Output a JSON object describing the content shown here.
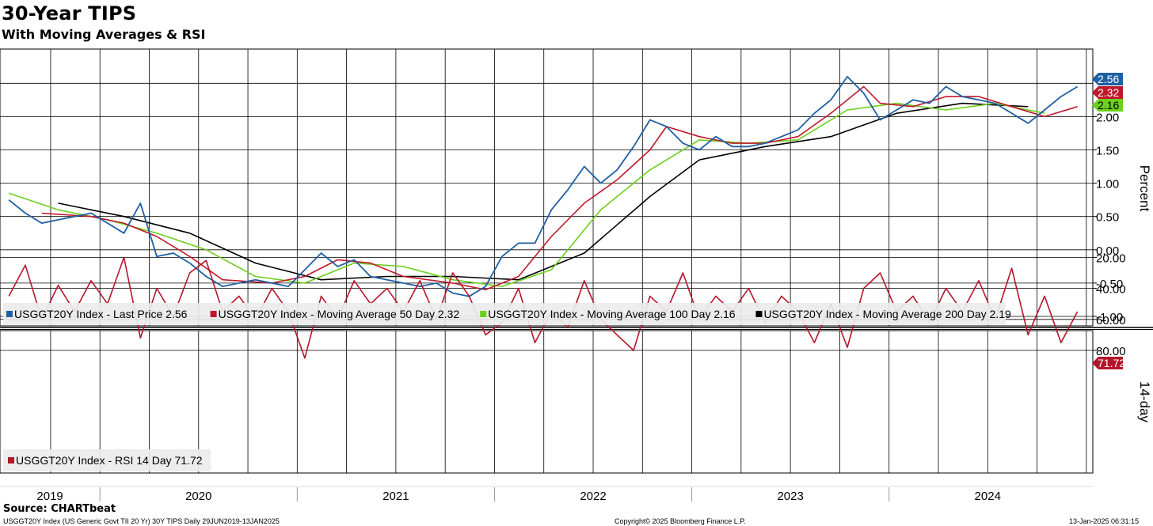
{
  "title": "30-Year TIPS",
  "subtitle": "With Moving Averages & RSI",
  "source": "Source: CHARTbeat",
  "footer": {
    "left": "USGGT20Y Index (US Generic Govt TII 20 Yr) 30Y TIPS  Daily 29JUN2019-13JAN2025",
    "center": "Copyright© 2025 Bloomberg Finance L.P.",
    "right": "13-Jan-2025 06:31:15"
  },
  "colors": {
    "price": "#1f5fa3",
    "ma50": "#c0182b",
    "ma100": "#6ccf1b",
    "ma200": "#000000",
    "rsi": "#b5152a",
    "grid": "#000000"
  },
  "chart_data": [
    {
      "type": "line",
      "ylabel": "Percent",
      "ylim": [
        -1.0,
        3.0
      ],
      "yticks": [
        "2.00",
        "1.50",
        "1.00",
        "0.50",
        "0.00",
        "-0.50",
        "-1.00"
      ],
      "ytick_values": [
        2.0,
        1.5,
        1.0,
        0.5,
        0.0,
        -0.5,
        -1.0
      ],
      "x_range": [
        "2019-06-29",
        "2025-01-13"
      ],
      "grid": true,
      "legend_position": "bottom-left",
      "series": [
        {
          "name": "USGGT20Y Index - Last Price 2.56",
          "key": "price",
          "last_label": "2.56",
          "points": [
            [
              "2019-07",
              0.75
            ],
            [
              "2019-08",
              0.55
            ],
            [
              "2019-09",
              0.4
            ],
            [
              "2019-10",
              0.45
            ],
            [
              "2019-11",
              0.5
            ],
            [
              "2019-12",
              0.55
            ],
            [
              "2020-01",
              0.4
            ],
            [
              "2020-02",
              0.25
            ],
            [
              "2020-03",
              0.7
            ],
            [
              "2020-04",
              -0.1
            ],
            [
              "2020-05",
              -0.05
            ],
            [
              "2020-06",
              -0.2
            ],
            [
              "2020-07",
              -0.4
            ],
            [
              "2020-08",
              -0.55
            ],
            [
              "2020-09",
              -0.5
            ],
            [
              "2020-10",
              -0.45
            ],
            [
              "2020-11",
              -0.5
            ],
            [
              "2020-12",
              -0.55
            ],
            [
              "2021-01",
              -0.3
            ],
            [
              "2021-02",
              -0.05
            ],
            [
              "2021-03",
              -0.25
            ],
            [
              "2021-04",
              -0.15
            ],
            [
              "2021-05",
              -0.4
            ],
            [
              "2021-06",
              -0.45
            ],
            [
              "2021-07",
              -0.5
            ],
            [
              "2021-08",
              -0.55
            ],
            [
              "2021-09",
              -0.5
            ],
            [
              "2021-10",
              -0.65
            ],
            [
              "2021-11",
              -0.7
            ],
            [
              "2021-12",
              -0.55
            ],
            [
              "2022-01",
              -0.1
            ],
            [
              "2022-02",
              0.1
            ],
            [
              "2022-03",
              0.1
            ],
            [
              "2022-04",
              0.6
            ],
            [
              "2022-05",
              0.9
            ],
            [
              "2022-06",
              1.25
            ],
            [
              "2022-07",
              1.0
            ],
            [
              "2022-08",
              1.2
            ],
            [
              "2022-09",
              1.55
            ],
            [
              "2022-10",
              1.95
            ],
            [
              "2022-11",
              1.85
            ],
            [
              "2022-12",
              1.6
            ],
            [
              "2023-01",
              1.5
            ],
            [
              "2023-02",
              1.7
            ],
            [
              "2023-03",
              1.55
            ],
            [
              "2023-04",
              1.55
            ],
            [
              "2023-05",
              1.6
            ],
            [
              "2023-06",
              1.7
            ],
            [
              "2023-07",
              1.8
            ],
            [
              "2023-08",
              2.05
            ],
            [
              "2023-09",
              2.25
            ],
            [
              "2023-10",
              2.6
            ],
            [
              "2023-11",
              2.35
            ],
            [
              "2023-12",
              1.95
            ],
            [
              "2024-01",
              2.1
            ],
            [
              "2024-02",
              2.25
            ],
            [
              "2024-03",
              2.2
            ],
            [
              "2024-04",
              2.45
            ],
            [
              "2024-05",
              2.3
            ],
            [
              "2024-06",
              2.25
            ],
            [
              "2024-07",
              2.2
            ],
            [
              "2024-08",
              2.05
            ],
            [
              "2024-09",
              1.9
            ],
            [
              "2024-10",
              2.1
            ],
            [
              "2024-11",
              2.3
            ],
            [
              "2024-12",
              2.45
            ],
            [
              "2025-01",
              2.56
            ]
          ]
        },
        {
          "name": "USGGT20Y Index - Moving Average 50 Day 2.32",
          "key": "ma50",
          "last_label": "2.32",
          "points": [
            [
              "2019-09",
              0.55
            ],
            [
              "2019-12",
              0.5
            ],
            [
              "2020-02",
              0.4
            ],
            [
              "2020-04",
              0.2
            ],
            [
              "2020-06",
              -0.1
            ],
            [
              "2020-08",
              -0.45
            ],
            [
              "2020-11",
              -0.5
            ],
            [
              "2021-01",
              -0.4
            ],
            [
              "2021-03",
              -0.15
            ],
            [
              "2021-05",
              -0.2
            ],
            [
              "2021-07",
              -0.4
            ],
            [
              "2021-10",
              -0.5
            ],
            [
              "2021-12",
              -0.6
            ],
            [
              "2022-02",
              -0.4
            ],
            [
              "2022-04",
              0.2
            ],
            [
              "2022-06",
              0.7
            ],
            [
              "2022-08",
              1.05
            ],
            [
              "2022-10",
              1.5
            ],
            [
              "2022-11",
              1.85
            ],
            [
              "2023-01",
              1.7
            ],
            [
              "2023-03",
              1.6
            ],
            [
              "2023-05",
              1.6
            ],
            [
              "2023-07",
              1.7
            ],
            [
              "2023-09",
              2.05
            ],
            [
              "2023-11",
              2.45
            ],
            [
              "2023-12",
              2.2
            ],
            [
              "2024-02",
              2.15
            ],
            [
              "2024-04",
              2.3
            ],
            [
              "2024-06",
              2.3
            ],
            [
              "2024-08",
              2.15
            ],
            [
              "2024-10",
              2.0
            ],
            [
              "2024-12",
              2.15
            ],
            [
              "2025-01",
              2.32
            ]
          ]
        },
        {
          "name": "USGGT20Y Index - Moving Average 100 Day 2.16",
          "key": "ma100",
          "last_label": "2.16",
          "points": [
            [
              "2019-07",
              0.85
            ],
            [
              "2019-10",
              0.6
            ],
            [
              "2020-01",
              0.45
            ],
            [
              "2020-04",
              0.25
            ],
            [
              "2020-07",
              0.0
            ],
            [
              "2020-10",
              -0.4
            ],
            [
              "2021-01",
              -0.5
            ],
            [
              "2021-04",
              -0.2
            ],
            [
              "2021-07",
              -0.25
            ],
            [
              "2021-10",
              -0.45
            ],
            [
              "2022-01",
              -0.55
            ],
            [
              "2022-04",
              -0.3
            ],
            [
              "2022-07",
              0.6
            ],
            [
              "2022-10",
              1.2
            ],
            [
              "2023-01",
              1.65
            ],
            [
              "2023-04",
              1.6
            ],
            [
              "2023-07",
              1.65
            ],
            [
              "2023-10",
              2.1
            ],
            [
              "2024-01",
              2.2
            ],
            [
              "2024-04",
              2.1
            ],
            [
              "2024-07",
              2.2
            ],
            [
              "2024-10",
              2.05
            ],
            [
              "2025-01",
              2.16
            ]
          ]
        },
        {
          "name": "USGGT20Y Index - Moving Average 200 Day 2.19",
          "key": "ma200",
          "last_label": "2.19",
          "points": [
            [
              "2019-06",
              1.0
            ],
            [
              "2019-10",
              0.7
            ],
            [
              "2020-02",
              0.5
            ],
            [
              "2020-06",
              0.25
            ],
            [
              "2020-10",
              -0.2
            ],
            [
              "2021-02",
              -0.45
            ],
            [
              "2021-06",
              -0.4
            ],
            [
              "2021-10",
              -0.4
            ],
            [
              "2022-02",
              -0.45
            ],
            [
              "2022-06",
              -0.05
            ],
            [
              "2022-10",
              0.8
            ],
            [
              "2023-01",
              1.35
            ],
            [
              "2023-05",
              1.55
            ],
            [
              "2023-09",
              1.7
            ],
            [
              "2024-01",
              2.05
            ],
            [
              "2024-05",
              2.2
            ],
            [
              "2024-09",
              2.15
            ],
            [
              "2025-01",
              2.19
            ]
          ]
        }
      ]
    },
    {
      "type": "line",
      "ylabel": "14-day",
      "ylim": [
        5,
        95
      ],
      "yticks": [
        "80.00",
        "60.00",
        "40.00",
        "20.00"
      ],
      "ytick_values": [
        80,
        60,
        40,
        20
      ],
      "grid": true,
      "legend_position": "bottom-left",
      "series": [
        {
          "name": "USGGT20Y Index - RSI 14 Day 71.72",
          "key": "rsi",
          "last_label": "71.72",
          "points": [
            [
              "2019-07",
              45
            ],
            [
              "2019-08",
              25
            ],
            [
              "2019-09",
              60
            ],
            [
              "2019-10",
              38
            ],
            [
              "2019-11",
              55
            ],
            [
              "2019-12",
              35
            ],
            [
              "2020-01",
              50
            ],
            [
              "2020-02",
              20
            ],
            [
              "2020-03",
              72
            ],
            [
              "2020-04",
              40
            ],
            [
              "2020-05",
              58
            ],
            [
              "2020-06",
              30
            ],
            [
              "2020-07",
              22
            ],
            [
              "2020-08",
              55
            ],
            [
              "2020-09",
              45
            ],
            [
              "2020-10",
              60
            ],
            [
              "2020-11",
              40
            ],
            [
              "2020-12",
              55
            ],
            [
              "2021-01",
              85
            ],
            [
              "2021-02",
              45
            ],
            [
              "2021-03",
              60
            ],
            [
              "2021-04",
              35
            ],
            [
              "2021-05",
              50
            ],
            [
              "2021-06",
              40
            ],
            [
              "2021-07",
              55
            ],
            [
              "2021-08",
              35
            ],
            [
              "2021-09",
              60
            ],
            [
              "2021-10",
              30
            ],
            [
              "2021-11",
              45
            ],
            [
              "2021-12",
              70
            ],
            [
              "2022-01",
              62
            ],
            [
              "2022-02",
              40
            ],
            [
              "2022-03",
              75
            ],
            [
              "2022-04",
              55
            ],
            [
              "2022-05",
              65
            ],
            [
              "2022-06",
              35
            ],
            [
              "2022-07",
              60
            ],
            [
              "2022-08",
              70
            ],
            [
              "2022-09",
              80
            ],
            [
              "2022-10",
              45
            ],
            [
              "2022-11",
              55
            ],
            [
              "2022-12",
              30
            ],
            [
              "2023-01",
              60
            ],
            [
              "2023-02",
              45
            ],
            [
              "2023-03",
              55
            ],
            [
              "2023-04",
              40
            ],
            [
              "2023-05",
              62
            ],
            [
              "2023-06",
              45
            ],
            [
              "2023-07",
              55
            ],
            [
              "2023-08",
              75
            ],
            [
              "2023-09",
              50
            ],
            [
              "2023-10",
              78
            ],
            [
              "2023-11",
              40
            ],
            [
              "2023-12",
              30
            ],
            [
              "2024-01",
              55
            ],
            [
              "2024-02",
              45
            ],
            [
              "2024-03",
              62
            ],
            [
              "2024-04",
              40
            ],
            [
              "2024-05",
              55
            ],
            [
              "2024-06",
              35
            ],
            [
              "2024-07",
              60
            ],
            [
              "2024-08",
              27
            ],
            [
              "2024-09",
              70
            ],
            [
              "2024-10",
              45
            ],
            [
              "2024-11",
              75
            ],
            [
              "2024-12",
              55
            ],
            [
              "2025-01",
              71.72
            ]
          ]
        }
      ]
    }
  ],
  "xaxis": {
    "years": [
      "2019",
      "2020",
      "2021",
      "2022",
      "2023",
      "2024"
    ]
  }
}
